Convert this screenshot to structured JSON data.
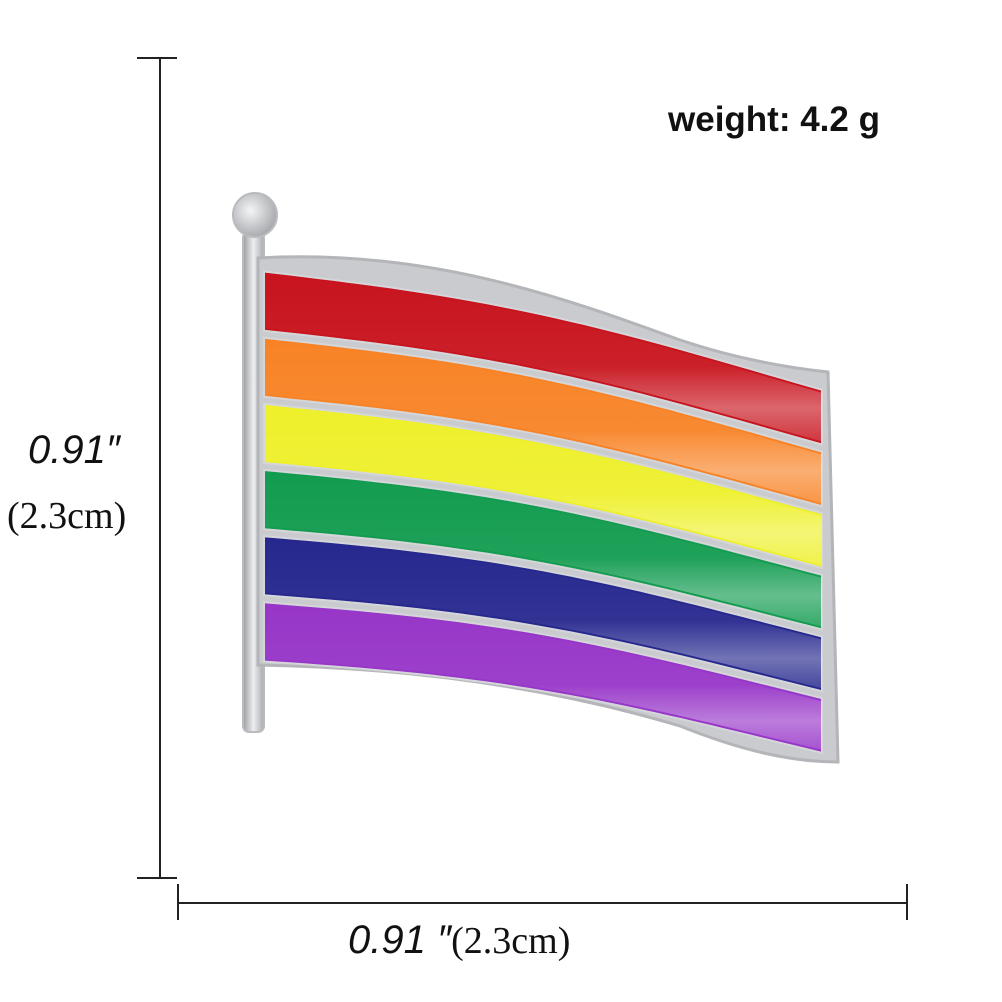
{
  "product": {
    "weight_label": "weight: 4.2 g",
    "height_inch": "0.91″",
    "height_cm": "(2.3cm)",
    "width_inch": "0.91 ″",
    "width_cm": "(2.3cm)"
  },
  "colors": {
    "background": "#ffffff",
    "metal_outline": "#c4c6c9",
    "red": "#c8141e",
    "orange": "#f88326",
    "yellow": "#eef02c",
    "green": "#139c50",
    "blue": "#27288e",
    "purple": "#9736c8"
  },
  "stripes": [
    "red",
    "orange",
    "yellow",
    "green",
    "blue",
    "purple"
  ]
}
